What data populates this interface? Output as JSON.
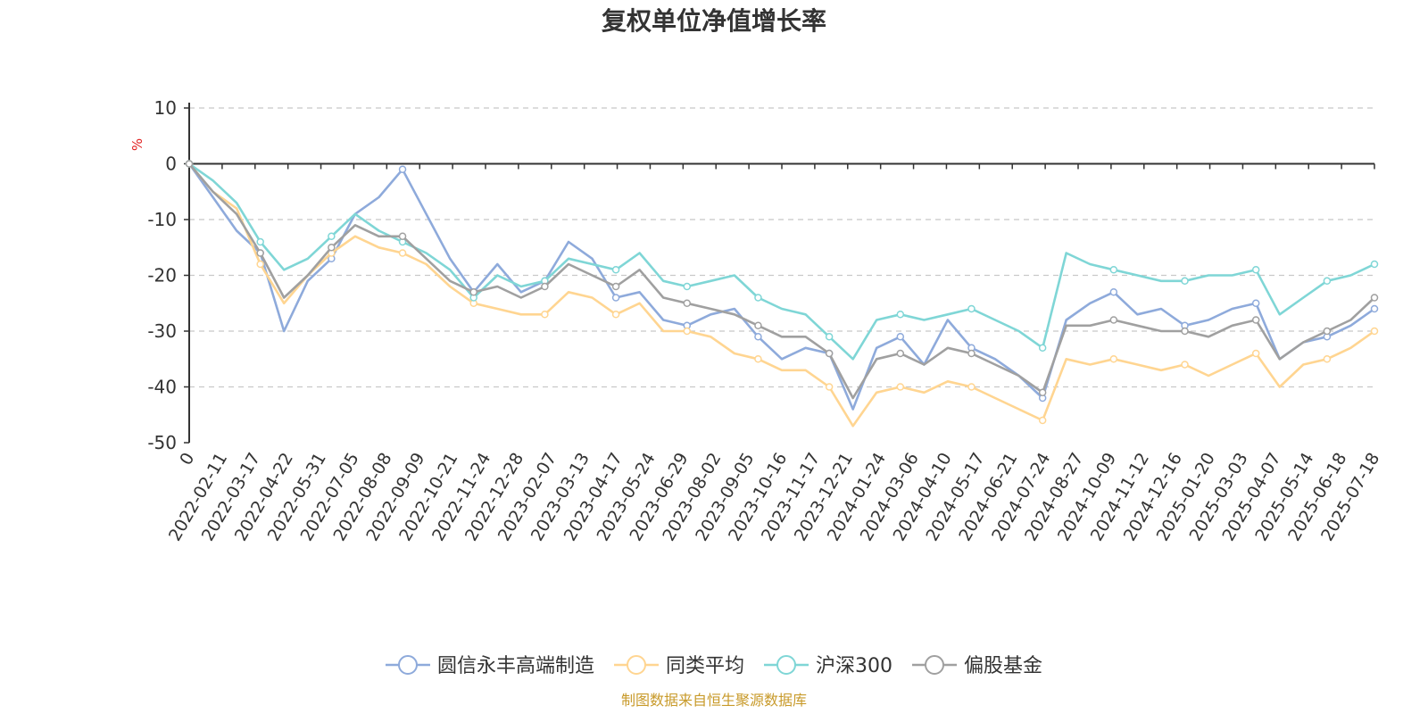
{
  "chart_data": {
    "type": "line",
    "title": "复权单位净值增长率",
    "ylabel": "%",
    "ylim": [
      -50,
      10
    ],
    "yticks": [
      10,
      0,
      -10,
      -20,
      -30,
      -40,
      -50
    ],
    "grid": true,
    "legend_position": "bottom",
    "x_tick_labels": [
      "0",
      "2022-02-11",
      "2022-03-17",
      "2022-04-22",
      "2022-05-31",
      "2022-07-05",
      "2022-08-08",
      "2022-09-09",
      "2022-10-21",
      "2022-11-24",
      "2022-12-28",
      "2023-02-07",
      "2023-03-13",
      "2023-04-17",
      "2023-05-24",
      "2023-06-29",
      "2023-08-02",
      "2023-09-05",
      "2023-10-16",
      "2023-11-17",
      "2023-12-21",
      "2024-01-24",
      "2024-03-06",
      "2024-04-10",
      "2024-05-17",
      "2024-06-21",
      "2024-07-24",
      "2024-08-27",
      "2024-10-09",
      "2024-11-12",
      "2024-12-16",
      "2025-01-20",
      "2025-03-03",
      "2025-04-07",
      "2025-05-14",
      "2025-06-18",
      "2025-07-18"
    ],
    "series": [
      {
        "name": "圆信永丰高端制造",
        "color": "#8eaadb",
        "values": [
          0,
          -6,
          -12,
          -16,
          -30,
          -21,
          -17,
          -9,
          -6,
          -1,
          -9,
          -17,
          -23,
          -18,
          -23,
          -21,
          -14,
          -17,
          -24,
          -23,
          -28,
          -29,
          -27,
          -26,
          -31,
          -35,
          -33,
          -34,
          -44,
          -33,
          -31,
          -36,
          -28,
          -33,
          -35,
          -38,
          -42,
          -28,
          -25,
          -23,
          -27,
          -26,
          -29,
          -28,
          -26,
          -25,
          -35,
          -32,
          -31,
          -29,
          -26
        ]
      },
      {
        "name": "同类平均",
        "color": "#ffd591",
        "values": [
          0,
          -5,
          -8,
          -18,
          -25,
          -20,
          -16,
          -13,
          -15,
          -16,
          -18,
          -22,
          -25,
          -26,
          -27,
          -27,
          -23,
          -24,
          -27,
          -25,
          -30,
          -30,
          -31,
          -34,
          -35,
          -37,
          -37,
          -40,
          -47,
          -41,
          -40,
          -41,
          -39,
          -40,
          -42,
          -44,
          -46,
          -35,
          -36,
          -35,
          -36,
          -37,
          -36,
          -38,
          -36,
          -34,
          -40,
          -36,
          -35,
          -33,
          -30
        ]
      },
      {
        "name": "沪深300",
        "color": "#7fd6d6",
        "values": [
          0,
          -3,
          -7,
          -14,
          -19,
          -17,
          -13,
          -9,
          -12,
          -14,
          -16,
          -19,
          -24,
          -20,
          -22,
          -21,
          -17,
          -18,
          -19,
          -16,
          -21,
          -22,
          -21,
          -20,
          -24,
          -26,
          -27,
          -31,
          -35,
          -28,
          -27,
          -28,
          -27,
          -26,
          -28,
          -30,
          -33,
          -16,
          -18,
          -19,
          -20,
          -21,
          -21,
          -20,
          -20,
          -19,
          -27,
          -24,
          -21,
          -20,
          -18
        ]
      },
      {
        "name": "偏股基金",
        "color": "#a0a0a0",
        "values": [
          0,
          -5,
          -9,
          -16,
          -24,
          -20,
          -15,
          -11,
          -13,
          -13,
          -17,
          -21,
          -23,
          -22,
          -24,
          -22,
          -18,
          -20,
          -22,
          -19,
          -24,
          -25,
          -26,
          -27,
          -29,
          -31,
          -31,
          -34,
          -42,
          -35,
          -34,
          -36,
          -33,
          -34,
          -36,
          -38,
          -41,
          -29,
          -29,
          -28,
          -29,
          -30,
          -30,
          -31,
          -29,
          -28,
          -35,
          -32,
          -30,
          -28,
          -24
        ]
      }
    ]
  },
  "source_text": "制图数据来自恒生聚源数据库",
  "colors": {
    "axis": "#333333",
    "grid": "#c8c8c8",
    "unit": "#e02020",
    "source": "#c89a2a"
  }
}
